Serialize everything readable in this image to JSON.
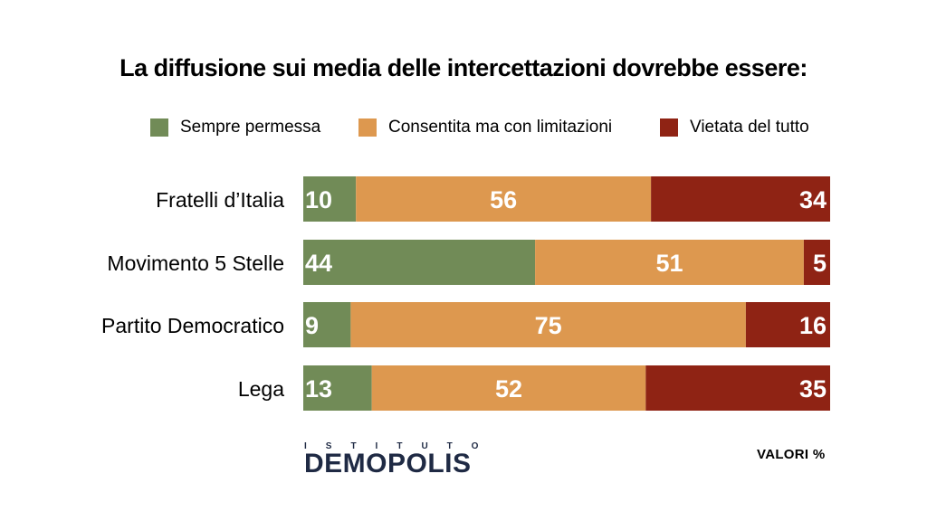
{
  "title": "La diffusione sui media delle intercettazioni dovrebbe essere:",
  "legend": [
    {
      "label": "Sempre permessa",
      "color": "#718b57"
    },
    {
      "label": "Consentita ma con limitazioni",
      "color": "#dd984f"
    },
    {
      "label": "Vietata del tutto",
      "color": "#8f2314"
    }
  ],
  "logo": {
    "top_text": "ISTITUTO",
    "name": "DEMOPOLIS"
  },
  "unit_note": "VALORI %",
  "chart_data": {
    "type": "bar",
    "orientation": "horizontal",
    "stacked": true,
    "categories": [
      "Fratelli d’Italia",
      "Movimento 5 Stelle",
      "Partito Democratico",
      "Lega"
    ],
    "series": [
      {
        "name": "Sempre permessa",
        "values": [
          10,
          44,
          9,
          13
        ],
        "color": "#718b57"
      },
      {
        "name": "Consentita ma con limitazioni",
        "values": [
          56,
          51,
          75,
          52
        ],
        "color": "#dd984f"
      },
      {
        "name": "Vietata del tutto",
        "values": [
          34,
          5,
          16,
          35
        ],
        "color": "#8f2314"
      }
    ],
    "xlim": [
      0,
      100
    ],
    "grid": false,
    "legend_position": "top"
  }
}
